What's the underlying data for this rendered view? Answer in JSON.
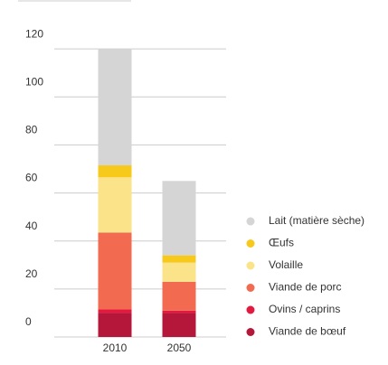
{
  "chart_data": {
    "type": "stacked_bar",
    "categories": [
      "2010",
      "2050"
    ],
    "series": [
      {
        "name": "Viande de bœuf",
        "color": "#b5173a",
        "values": [
          10,
          10
        ]
      },
      {
        "name": "Ovins / caprins",
        "color": "#e4193f",
        "values": [
          1.5,
          1
        ]
      },
      {
        "name": "Viande de porc",
        "color": "#f26a4f",
        "values": [
          32,
          12
        ]
      },
      {
        "name": "Volaille",
        "color": "#fbe38a",
        "values": [
          23,
          8
        ]
      },
      {
        "name": "Œufs",
        "color": "#f6c91b",
        "values": [
          5,
          3
        ]
      },
      {
        "name": "Lait (matière sèche)",
        "color": "#d5d5d5",
        "values": [
          48.5,
          31
        ]
      }
    ],
    "ylim": [
      0,
      140
    ],
    "yticks": [
      0,
      20,
      40,
      60,
      80,
      100,
      120
    ],
    "grid": true
  }
}
